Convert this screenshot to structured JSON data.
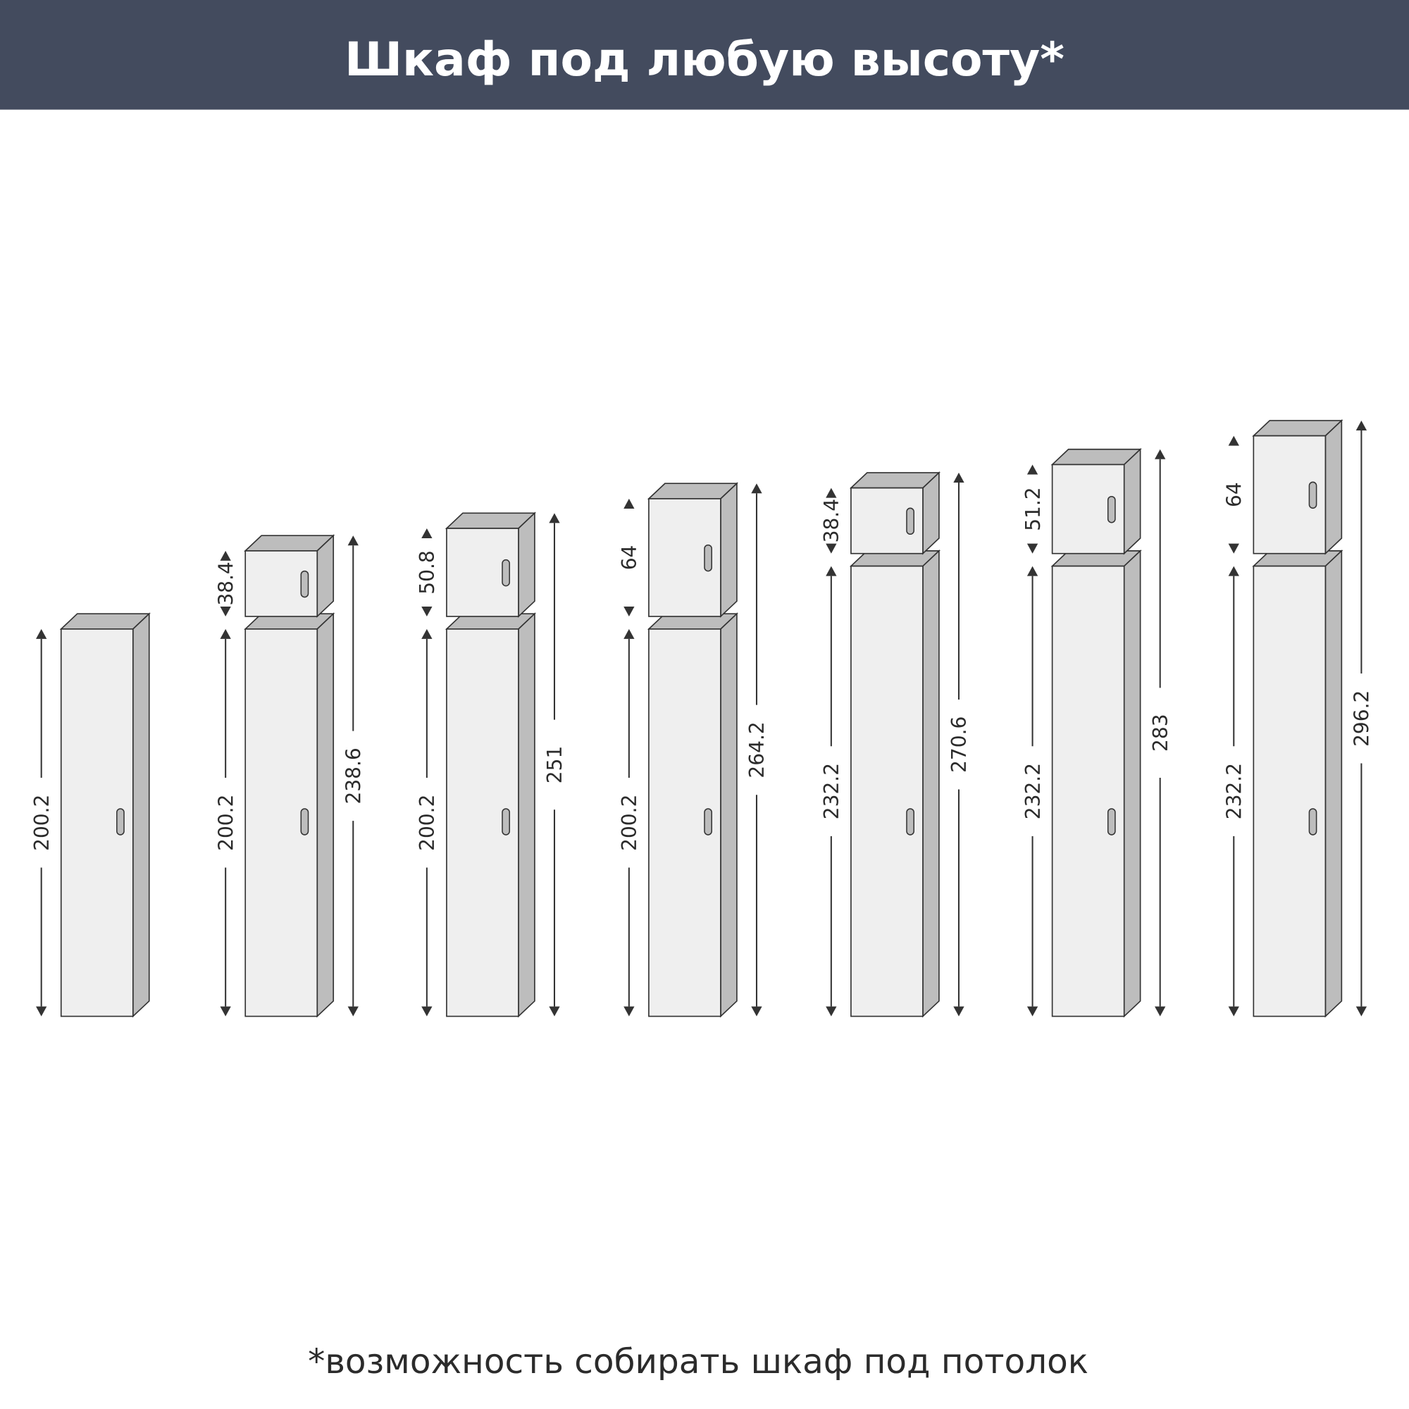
{
  "header": {
    "title": "Шкаф под любую высоту*",
    "background": "#434b5e"
  },
  "footer": {
    "note": "*возможность собирать шкаф под потолок"
  },
  "colors": {
    "front": "#efefef",
    "side": "#bdbdbd",
    "outline": "#333333",
    "dimension": "#333333"
  },
  "cabinets": [
    {
      "lower": "200.2",
      "upper": null,
      "total": null
    },
    {
      "lower": "200.2",
      "upper": "38.4",
      "total": "238.6"
    },
    {
      "lower": "200.2",
      "upper": "50.8",
      "total": "251"
    },
    {
      "lower": "200.2",
      "upper": "64",
      "total": "264.2"
    },
    {
      "lower": "232.2",
      "upper": "38.4",
      "total": "270.6"
    },
    {
      "lower": "232.2",
      "upper": "51.2",
      "total": "283"
    },
    {
      "lower": "232.2",
      "upper": "64",
      "total": "296.2"
    }
  ]
}
